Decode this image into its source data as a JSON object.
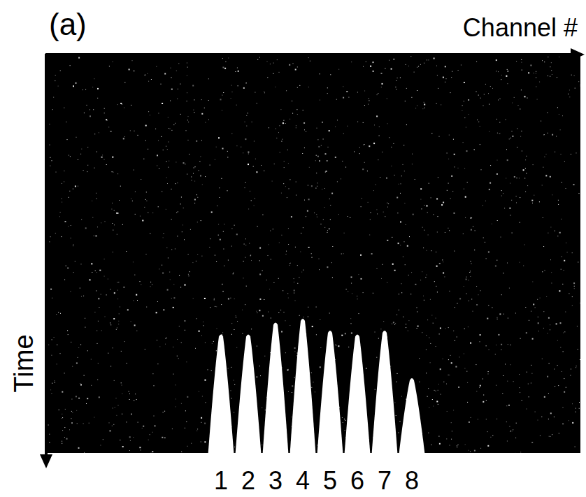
{
  "chart_data": {
    "type": "bar",
    "title": "(a)",
    "x_label": "Channel #",
    "y_label": "Time",
    "x": [
      1,
      2,
      3,
      4,
      5,
      6,
      7,
      8
    ],
    "values": [
      0.3,
      0.3,
      0.33,
      0.34,
      0.31,
      0.3,
      0.31,
      0.19
    ],
    "color": "#ffffff",
    "xlim": [
      -5.36,
      14.18
    ],
    "xticks": [
      1,
      2,
      3,
      4,
      5,
      6,
      7,
      8
    ],
    "ylim": [
      0,
      1
    ],
    "tick_labels": "x",
    "grid": false
  }
}
